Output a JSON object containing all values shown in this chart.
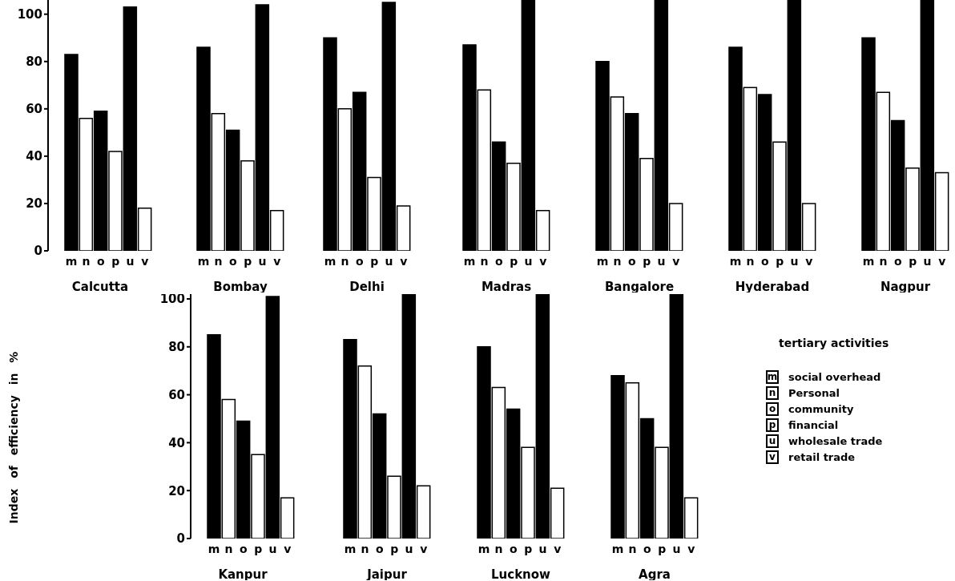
{
  "chart_data": [
    {
      "type": "bar",
      "xlabel": "Calcutta",
      "categories": [
        "m",
        "n",
        "o",
        "p",
        "u",
        "v"
      ],
      "values": [
        83,
        56,
        59,
        42,
        103,
        18
      ],
      "colors": [
        "#000000",
        "#ffffff",
        "#000000",
        "#ffffff",
        "#000000",
        "#ffffff"
      ],
      "ylim": [
        0,
        106
      ],
      "yticks": [
        0,
        20,
        40,
        60,
        80,
        100
      ]
    },
    {
      "type": "bar",
      "xlabel": "Bombay",
      "categories": [
        "m",
        "n",
        "o",
        "p",
        "u",
        "v"
      ],
      "values": [
        86,
        58,
        51,
        38,
        104,
        17
      ],
      "colors": [
        "#000000",
        "#ffffff",
        "#000000",
        "#ffffff",
        "#000000",
        "#ffffff"
      ],
      "ylim": [
        0,
        106
      ],
      "tick_labels": "x"
    },
    {
      "type": "bar",
      "xlabel": "Delhi",
      "categories": [
        "m",
        "n",
        "o",
        "p",
        "u",
        "v"
      ],
      "values": [
        90,
        60,
        67,
        31,
        105,
        19
      ],
      "colors": [
        "#000000",
        "#ffffff",
        "#000000",
        "#ffffff",
        "#000000",
        "#ffffff"
      ],
      "ylim": [
        0,
        106
      ],
      "tick_labels": "x"
    },
    {
      "type": "bar",
      "xlabel": "Madras",
      "categories": [
        "m",
        "n",
        "o",
        "p",
        "u",
        "v"
      ],
      "values": [
        87,
        68,
        46,
        37,
        106,
        17
      ],
      "colors": [
        "#000000",
        "#ffffff",
        "#000000",
        "#ffffff",
        "#000000",
        "#ffffff"
      ],
      "ylim": [
        0,
        106
      ],
      "tick_labels": "x"
    },
    {
      "type": "bar",
      "xlabel": "Bangalore",
      "categories": [
        "m",
        "n",
        "o",
        "p",
        "u",
        "v"
      ],
      "values": [
        80,
        65,
        58,
        39,
        106,
        20
      ],
      "colors": [
        "#000000",
        "#ffffff",
        "#000000",
        "#ffffff",
        "#000000",
        "#ffffff"
      ],
      "ylim": [
        0,
        106
      ],
      "tick_labels": "x"
    },
    {
      "type": "bar",
      "xlabel": "Hyderabad",
      "categories": [
        "m",
        "n",
        "o",
        "p",
        "u",
        "v"
      ],
      "values": [
        86,
        69,
        66,
        46,
        106,
        20
      ],
      "colors": [
        "#000000",
        "#ffffff",
        "#000000",
        "#ffffff",
        "#000000",
        "#ffffff"
      ],
      "ylim": [
        0,
        106
      ],
      "tick_labels": "x"
    },
    {
      "type": "bar",
      "xlabel": "Nagpur",
      "categories": [
        "m",
        "n",
        "o",
        "p",
        "u",
        "v"
      ],
      "values": [
        90,
        67,
        55,
        35,
        106,
        33
      ],
      "colors": [
        "#000000",
        "#ffffff",
        "#000000",
        "#ffffff",
        "#000000",
        "#ffffff"
      ],
      "ylim": [
        0,
        106
      ],
      "tick_labels": "x"
    },
    {
      "type": "bar",
      "xlabel": "Kanpur",
      "ylabel": "Index of efficiency in %",
      "categories": [
        "m",
        "n",
        "o",
        "p",
        "u",
        "v"
      ],
      "values": [
        85,
        58,
        49,
        35,
        101,
        17
      ],
      "colors": [
        "#000000",
        "#ffffff",
        "#000000",
        "#ffffff",
        "#000000",
        "#ffffff"
      ],
      "ylim": [
        0,
        102
      ],
      "yticks": [
        0,
        20,
        40,
        60,
        80,
        100
      ]
    },
    {
      "type": "bar",
      "xlabel": "Jaipur",
      "categories": [
        "m",
        "n",
        "o",
        "p",
        "u",
        "v"
      ],
      "values": [
        83,
        72,
        52,
        26,
        102,
        22
      ],
      "colors": [
        "#000000",
        "#ffffff",
        "#000000",
        "#ffffff",
        "#000000",
        "#ffffff"
      ],
      "ylim": [
        0,
        102
      ],
      "tick_labels": "x"
    },
    {
      "type": "bar",
      "xlabel": "Lucknow",
      "categories": [
        "m",
        "n",
        "o",
        "p",
        "u",
        "v"
      ],
      "values": [
        80,
        63,
        54,
        38,
        102,
        21
      ],
      "colors": [
        "#000000",
        "#ffffff",
        "#000000",
        "#ffffff",
        "#000000",
        "#ffffff"
      ],
      "ylim": [
        0,
        102
      ],
      "tick_labels": "x"
    },
    {
      "type": "bar",
      "xlabel": "Agra",
      "categories": [
        "m",
        "n",
        "o",
        "p",
        "u",
        "v"
      ],
      "values": [
        68,
        65,
        50,
        38,
        102,
        17
      ],
      "colors": [
        "#000000",
        "#ffffff",
        "#000000",
        "#ffffff",
        "#000000",
        "#ffffff"
      ],
      "ylim": [
        0,
        102
      ],
      "tick_labels": "x"
    },
    {
      "type": "other",
      "title": "tertiary activities",
      "categories": [
        "m",
        "n",
        "o",
        "p",
        "u",
        "v"
      ],
      "annotations": [
        "social overhead",
        "Personal",
        "community",
        "financial",
        "wholesale trade",
        "retail trade"
      ]
    }
  ]
}
